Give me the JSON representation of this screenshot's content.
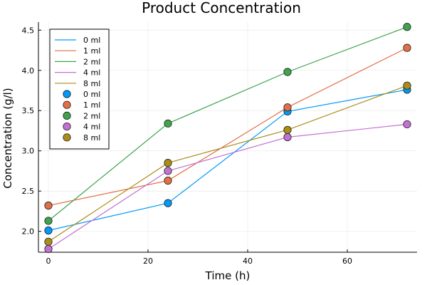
{
  "chart_data": {
    "type": "line",
    "title": "Product Concentration",
    "xlabel": "Time (h)",
    "ylabel": "Concentration (g/l)",
    "xlim": [
      -2,
      74
    ],
    "ylim": [
      1.74,
      4.6
    ],
    "xticks": [
      0,
      20,
      40,
      60
    ],
    "xtick_labels": [
      "0",
      "20",
      "40",
      "60"
    ],
    "yticks": [
      2.0,
      2.5,
      3.0,
      3.5,
      4.0,
      4.5
    ],
    "ytick_labels": [
      "2.0",
      "2.5",
      "3.0",
      "3.5",
      "4.0",
      "4.5"
    ],
    "grid": true,
    "legend_position": "top-left",
    "x": [
      0,
      24,
      48,
      72
    ],
    "series": [
      {
        "name": "0 ml",
        "color": "#009AFA",
        "values": [
          2.01,
          2.35,
          3.49,
          3.76
        ]
      },
      {
        "name": "1 ml",
        "color": "#E36F47",
        "values": [
          2.32,
          2.63,
          3.54,
          4.28
        ]
      },
      {
        "name": "2 ml",
        "color": "#3EA44E",
        "values": [
          2.13,
          3.34,
          3.98,
          4.54
        ]
      },
      {
        "name": "4 ml",
        "color": "#C371D2",
        "values": [
          1.78,
          2.75,
          3.17,
          3.33
        ]
      },
      {
        "name": "8 ml",
        "color": "#AC8D18",
        "values": [
          1.87,
          2.85,
          3.26,
          3.81
        ]
      }
    ],
    "legend": {
      "line_entries": [
        "0 ml",
        "1 ml",
        "2 ml",
        "4 ml",
        "8 ml"
      ],
      "marker_entries": [
        "0 ml",
        "1 ml",
        "2 ml",
        "4 ml",
        "8 ml"
      ]
    }
  }
}
